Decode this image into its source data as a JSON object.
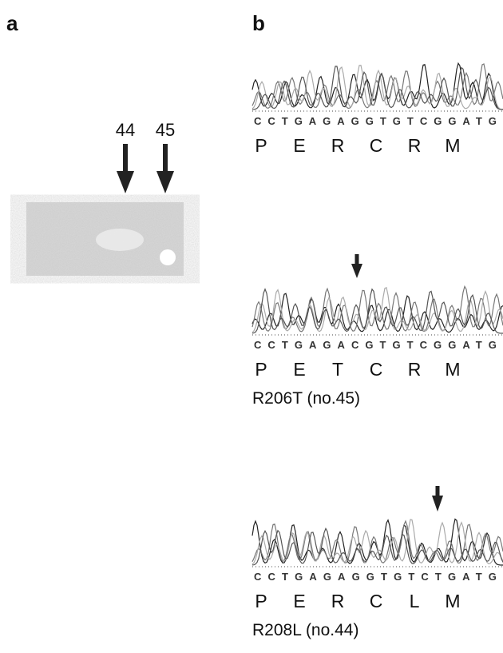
{
  "panel_a": {
    "label": "a",
    "lanes": [
      "44",
      "45"
    ]
  },
  "panel_b": {
    "label": "b",
    "traces": [
      {
        "sequence": "CCTGAGAGGTGTCGGATG",
        "residues": [
          "P",
          "E",
          "R",
          "C",
          "R",
          "M"
        ]
      },
      {
        "sequence": "CCTGAGACGTGTCGGATG",
        "residues": [
          "P",
          "E",
          "T",
          "C",
          "R",
          "M"
        ],
        "caption": "R206T (no.45)"
      },
      {
        "sequence": "CCTGAGAGGTGTCTGATG",
        "residues": [
          "P",
          "E",
          "R",
          "C",
          "L",
          "M"
        ],
        "caption": "R208L (no.44)"
      }
    ]
  }
}
